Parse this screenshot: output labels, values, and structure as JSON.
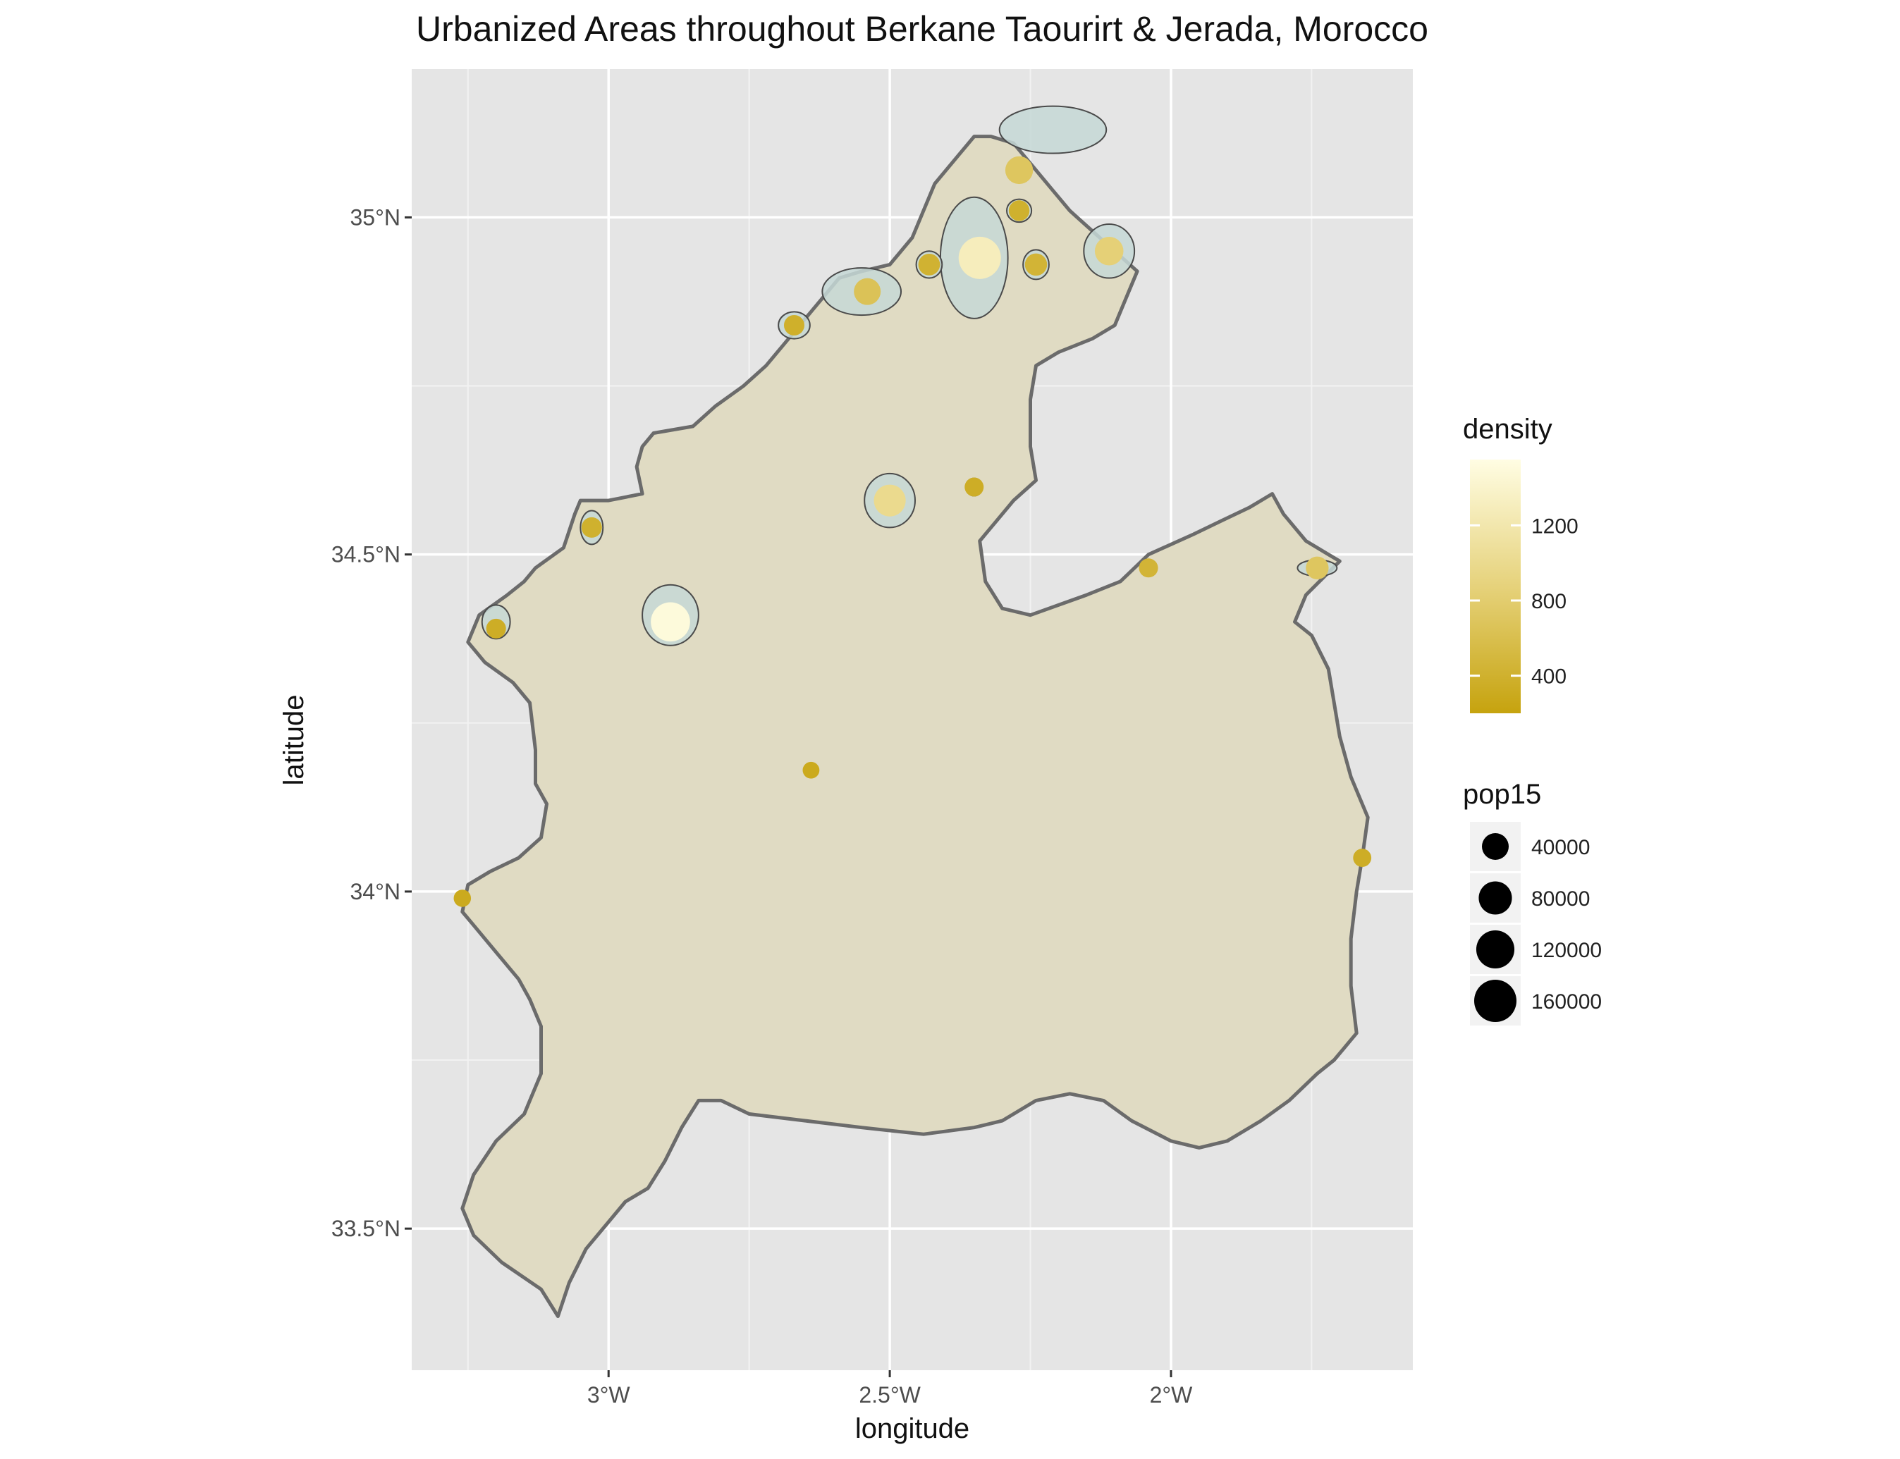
{
  "title": "Urbanized Areas throughout Berkane Taourirt & Jerada, Morocco",
  "axes": {
    "xlabel": "longitude",
    "ylabel": "latitude",
    "x_ticks": [
      {
        "value": -3.0,
        "label": "3°W"
      },
      {
        "value": -2.5,
        "label": "2.5°W"
      },
      {
        "value": -2.0,
        "label": "2°W"
      }
    ],
    "y_ticks": [
      {
        "value": 33.5,
        "label": "33.5°N"
      },
      {
        "value": 34.0,
        "label": "34°N"
      },
      {
        "value": 34.5,
        "label": "34.5°N"
      },
      {
        "value": 35.0,
        "label": "35°N"
      }
    ]
  },
  "legend_density": {
    "title": "density",
    "labels": [
      {
        "value": 1200,
        "label": "1200"
      },
      {
        "value": 800,
        "label": "800"
      },
      {
        "value": 400,
        "label": "400"
      }
    ],
    "range": [
      200,
      1550
    ],
    "low_color": "#c6a30e",
    "high_color": "#fffde3"
  },
  "legend_pop": {
    "title": "pop15",
    "labels": [
      "40000",
      "80000",
      "120000",
      "160000"
    ],
    "values": [
      40000,
      80000,
      120000,
      160000
    ]
  },
  "colors": {
    "panel": "#e5e5e5",
    "grid": "#ffffff",
    "region_fill": "#e0dbc3",
    "region_stroke": "#6b6b6b",
    "urban_fill": "#c5d8d6"
  },
  "chart_data": {
    "type": "map",
    "xlim": [
      -3.35,
      -1.57
    ],
    "ylim": [
      33.29,
      35.22
    ],
    "region_outline": [
      [
        -3.09,
        33.37
      ],
      [
        -3.12,
        33.41
      ],
      [
        -3.19,
        33.45
      ],
      [
        -3.24,
        33.49
      ],
      [
        -3.26,
        33.53
      ],
      [
        -3.24,
        33.58
      ],
      [
        -3.2,
        33.63
      ],
      [
        -3.15,
        33.67
      ],
      [
        -3.14,
        33.69
      ],
      [
        -3.12,
        33.73
      ],
      [
        -3.12,
        33.8
      ],
      [
        -3.14,
        33.84
      ],
      [
        -3.16,
        33.87
      ],
      [
        -3.2,
        33.91
      ],
      [
        -3.24,
        33.95
      ],
      [
        -3.26,
        33.97
      ],
      [
        -3.25,
        34.01
      ],
      [
        -3.21,
        34.03
      ],
      [
        -3.16,
        34.05
      ],
      [
        -3.12,
        34.08
      ],
      [
        -3.11,
        34.13
      ],
      [
        -3.13,
        34.16
      ],
      [
        -3.13,
        34.21
      ],
      [
        -3.14,
        34.28
      ],
      [
        -3.17,
        34.31
      ],
      [
        -3.22,
        34.34
      ],
      [
        -3.25,
        34.37
      ],
      [
        -3.23,
        34.41
      ],
      [
        -3.18,
        34.44
      ],
      [
        -3.15,
        34.46
      ],
      [
        -3.13,
        34.48
      ],
      [
        -3.08,
        34.51
      ],
      [
        -3.06,
        34.56
      ],
      [
        -3.05,
        34.58
      ],
      [
        -3.0,
        34.58
      ],
      [
        -2.94,
        34.59
      ],
      [
        -2.95,
        34.63
      ],
      [
        -2.94,
        34.66
      ],
      [
        -2.92,
        34.68
      ],
      [
        -2.85,
        34.69
      ],
      [
        -2.81,
        34.72
      ],
      [
        -2.76,
        34.75
      ],
      [
        -2.72,
        34.78
      ],
      [
        -2.69,
        34.81
      ],
      [
        -2.64,
        34.86
      ],
      [
        -2.59,
        34.91
      ],
      [
        -2.55,
        34.92
      ],
      [
        -2.5,
        34.93
      ],
      [
        -2.46,
        34.97
      ],
      [
        -2.42,
        35.05
      ],
      [
        -2.38,
        35.09
      ],
      [
        -2.35,
        35.12
      ],
      [
        -2.32,
        35.12
      ],
      [
        -2.28,
        35.11
      ],
      [
        -2.24,
        35.07
      ],
      [
        -2.21,
        35.04
      ],
      [
        -2.18,
        35.01
      ],
      [
        -2.14,
        34.98
      ],
      [
        -2.1,
        34.95
      ],
      [
        -2.06,
        34.92
      ],
      [
        -2.08,
        34.88
      ],
      [
        -2.1,
        34.84
      ],
      [
        -2.14,
        34.82
      ],
      [
        -2.2,
        34.8
      ],
      [
        -2.24,
        34.78
      ],
      [
        -2.25,
        34.73
      ],
      [
        -2.25,
        34.66
      ],
      [
        -2.24,
        34.61
      ],
      [
        -2.28,
        34.58
      ],
      [
        -2.31,
        34.55
      ],
      [
        -2.34,
        34.52
      ],
      [
        -2.33,
        34.46
      ],
      [
        -2.3,
        34.42
      ],
      [
        -2.25,
        34.41
      ],
      [
        -2.15,
        34.44
      ],
      [
        -2.09,
        34.46
      ],
      [
        -2.04,
        34.5
      ],
      [
        -1.96,
        34.53
      ],
      [
        -1.91,
        34.55
      ],
      [
        -1.86,
        34.57
      ],
      [
        -1.82,
        34.59
      ],
      [
        -1.8,
        34.56
      ],
      [
        -1.76,
        34.52
      ],
      [
        -1.72,
        34.5
      ],
      [
        -1.7,
        34.49
      ],
      [
        -1.76,
        34.44
      ],
      [
        -1.78,
        34.4
      ],
      [
        -1.75,
        34.38
      ],
      [
        -1.72,
        34.33
      ],
      [
        -1.71,
        34.28
      ],
      [
        -1.7,
        34.23
      ],
      [
        -1.68,
        34.17
      ],
      [
        -1.65,
        34.11
      ],
      [
        -1.66,
        34.05
      ],
      [
        -1.67,
        34.0
      ],
      [
        -1.68,
        33.93
      ],
      [
        -1.68,
        33.86
      ],
      [
        -1.67,
        33.79
      ],
      [
        -1.71,
        33.75
      ],
      [
        -1.74,
        33.73
      ],
      [
        -1.79,
        33.69
      ],
      [
        -1.84,
        33.66
      ],
      [
        -1.9,
        33.63
      ],
      [
        -1.95,
        33.62
      ],
      [
        -2.0,
        33.63
      ],
      [
        -2.07,
        33.66
      ],
      [
        -2.12,
        33.69
      ],
      [
        -2.18,
        33.7
      ],
      [
        -2.24,
        33.69
      ],
      [
        -2.3,
        33.66
      ],
      [
        -2.35,
        33.65
      ],
      [
        -2.44,
        33.64
      ],
      [
        -2.55,
        33.65
      ],
      [
        -2.65,
        33.66
      ],
      [
        -2.75,
        33.67
      ],
      [
        -2.8,
        33.69
      ],
      [
        -2.84,
        33.69
      ],
      [
        -2.87,
        33.65
      ],
      [
        -2.9,
        33.6
      ],
      [
        -2.93,
        33.56
      ],
      [
        -2.97,
        33.54
      ],
      [
        -3.0,
        33.51
      ],
      [
        -3.04,
        33.47
      ],
      [
        -3.07,
        33.42
      ]
    ],
    "urban_areas": [
      {
        "lon": -2.21,
        "lat": 35.13,
        "rx": 0.095,
        "ry": 0.035
      },
      {
        "lon": -2.11,
        "lat": 34.95,
        "rx": 0.045,
        "ry": 0.04
      },
      {
        "lon": -2.35,
        "lat": 34.94,
        "rx": 0.06,
        "ry": 0.09
      },
      {
        "lon": -2.27,
        "lat": 35.01,
        "rx": 0.022,
        "ry": 0.017
      },
      {
        "lon": -2.24,
        "lat": 34.93,
        "rx": 0.023,
        "ry": 0.022
      },
      {
        "lon": -2.43,
        "lat": 34.93,
        "rx": 0.023,
        "ry": 0.02
      },
      {
        "lon": -2.55,
        "lat": 34.89,
        "rx": 0.07,
        "ry": 0.035
      },
      {
        "lon": -2.67,
        "lat": 34.84,
        "rx": 0.028,
        "ry": 0.02
      },
      {
        "lon": -2.5,
        "lat": 34.58,
        "rx": 0.045,
        "ry": 0.04
      },
      {
        "lon": -2.35,
        "lat": 34.6,
        "rx": 0.015,
        "ry": 0.013
      },
      {
        "lon": -3.03,
        "lat": 34.54,
        "rx": 0.02,
        "ry": 0.025
      },
      {
        "lon": -2.89,
        "lat": 34.41,
        "rx": 0.05,
        "ry": 0.045
      },
      {
        "lon": -3.2,
        "lat": 34.4,
        "rx": 0.025,
        "ry": 0.025
      },
      {
        "lon": -1.74,
        "lat": 34.48,
        "rx": 0.035,
        "ry": 0.012
      },
      {
        "lon": -2.04,
        "lat": 34.48,
        "rx": 0.01,
        "ry": 0.01
      }
    ],
    "points": [
      {
        "lon": -2.27,
        "lat": 35.07,
        "pop15": 45000,
        "density": 700
      },
      {
        "lon": -2.27,
        "lat": 35.01,
        "pop15": 15000,
        "density": 400
      },
      {
        "lon": -2.34,
        "lat": 34.94,
        "pop15": 160000,
        "density": 1300
      },
      {
        "lon": -2.24,
        "lat": 34.93,
        "pop15": 20000,
        "density": 450
      },
      {
        "lon": -2.11,
        "lat": 34.95,
        "pop15": 50000,
        "density": 850
      },
      {
        "lon": -2.43,
        "lat": 34.93,
        "pop15": 18000,
        "density": 420
      },
      {
        "lon": -2.54,
        "lat": 34.89,
        "pop15": 40000,
        "density": 650
      },
      {
        "lon": -2.67,
        "lat": 34.84,
        "pop15": 14000,
        "density": 380
      },
      {
        "lon": -2.5,
        "lat": 34.58,
        "pop15": 70000,
        "density": 1000
      },
      {
        "lon": -2.35,
        "lat": 34.6,
        "pop15": 10000,
        "density": 350
      },
      {
        "lon": -3.03,
        "lat": 34.54,
        "pop15": 14000,
        "density": 400
      },
      {
        "lon": -2.89,
        "lat": 34.4,
        "pop15": 130000,
        "density": 1500
      },
      {
        "lon": -3.2,
        "lat": 34.39,
        "pop15": 12000,
        "density": 350
      },
      {
        "lon": -2.64,
        "lat": 34.18,
        "pop15": 5000,
        "density": 300
      },
      {
        "lon": -2.04,
        "lat": 34.48,
        "pop15": 10000,
        "density": 450
      },
      {
        "lon": -1.74,
        "lat": 34.48,
        "pop15": 22000,
        "density": 700
      },
      {
        "lon": -1.66,
        "lat": 34.05,
        "pop15": 8000,
        "density": 350
      },
      {
        "lon": -3.26,
        "lat": 33.99,
        "pop15": 6000,
        "density": 300
      }
    ]
  }
}
